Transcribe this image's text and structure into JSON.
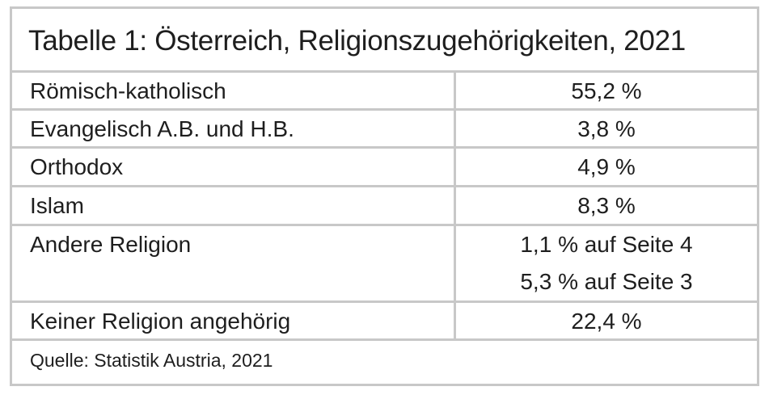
{
  "title": "Tabelle 1: Österreich, Religionszugehörigkeiten, 2021",
  "rows": [
    {
      "label": "Römisch-katholisch",
      "values": [
        "55,2 %"
      ]
    },
    {
      "label": "Evangelisch A.B. und H.B.",
      "values": [
        "3,8 %"
      ]
    },
    {
      "label": "Orthodox",
      "values": [
        "4,9 %"
      ]
    },
    {
      "label": "Islam",
      "values": [
        "8,3 %"
      ]
    },
    {
      "label": "Andere Religion",
      "values": [
        "1,1 % auf Seite 4",
        "5,3 % auf Seite 3"
      ]
    },
    {
      "label": "Keiner Religion angehörig",
      "values": [
        "22,4 %"
      ]
    }
  ],
  "source": "Quelle: Statistik Austria, 2021"
}
